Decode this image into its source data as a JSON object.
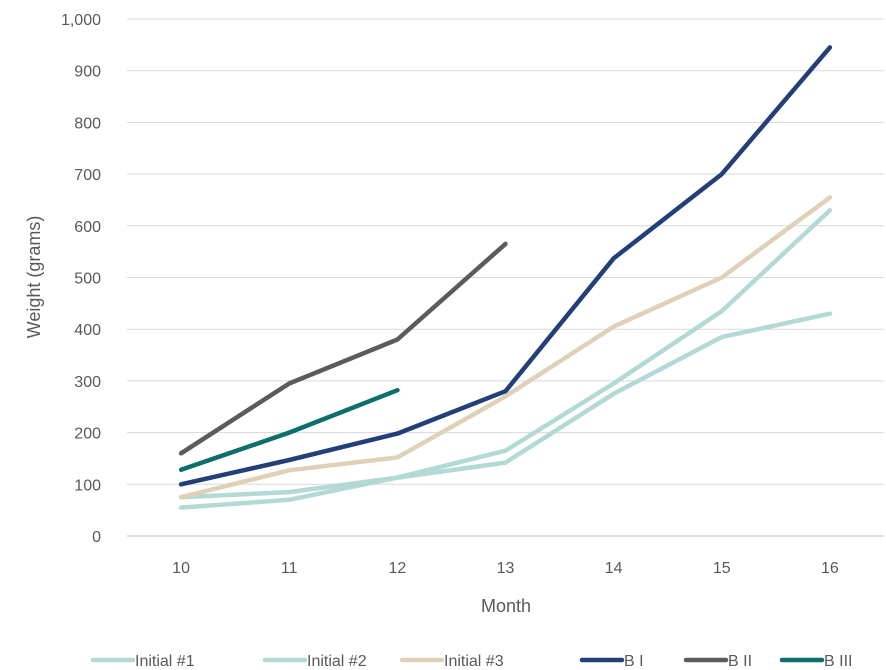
{
  "chart_data": {
    "type": "line",
    "title": "",
    "xlabel": "Month",
    "ylabel": "Weight (grams)",
    "categories": [
      "10",
      "11",
      "12",
      "13",
      "14",
      "15",
      "16"
    ],
    "ylim": [
      0,
      1000
    ],
    "yticks": [
      "0",
      "100",
      "200",
      "300",
      "400",
      "500",
      "600",
      "700",
      "800",
      "900",
      "1,000"
    ],
    "grid": true,
    "legend_position": "bottom",
    "series": [
      {
        "name": "Initial #1",
        "color": "#b3d9d6",
        "values": [
          75,
          85,
          113,
          142,
          275,
          385,
          430
        ]
      },
      {
        "name": "Initial #2",
        "color": "#b3d9d6",
        "values": [
          55,
          70,
          113,
          165,
          295,
          435,
          630
        ]
      },
      {
        "name": "Initial #3",
        "color": "#dfd1b7",
        "values": [
          75,
          127,
          152,
          270,
          405,
          500,
          655
        ]
      },
      {
        "name": "B I",
        "color": "#233f78",
        "values": [
          100,
          147,
          198,
          280,
          537,
          700,
          945
        ]
      },
      {
        "name": "B II",
        "color": "#5b5b5b",
        "values": [
          160,
          295,
          380,
          565,
          null,
          null,
          null
        ]
      },
      {
        "name": "B III",
        "color": "#0c6f6b",
        "values": [
          128,
          200,
          282,
          null,
          null,
          null,
          null
        ]
      }
    ]
  }
}
